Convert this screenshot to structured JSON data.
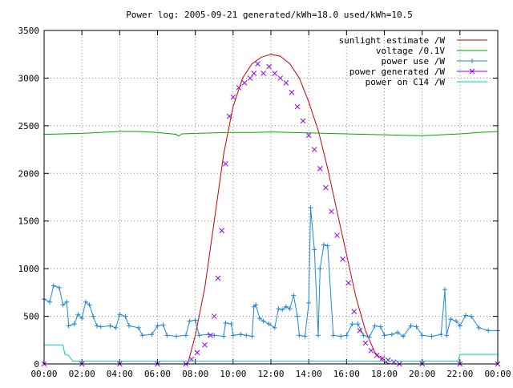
{
  "chart_data": {
    "type": "line",
    "title": "Power log: 2005-09-21 generated/kWh=18.0 used/kWh=10.5",
    "xlabel": "",
    "ylabel": "",
    "x_ticks": [
      "00:00",
      "02:00",
      "04:00",
      "06:00",
      "08:00",
      "10:00",
      "12:00",
      "14:00",
      "16:00",
      "18:00",
      "20:00",
      "22:00",
      "00:00"
    ],
    "y_ticks": [
      "0",
      "500",
      "1000",
      "1500",
      "2000",
      "2500",
      "3000",
      "3500"
    ],
    "xlim": [
      0,
      24
    ],
    "ylim": [
      0,
      3500
    ],
    "grid": true,
    "legend_position": "top-right",
    "series": [
      {
        "name": "sunlight estimate /W",
        "color": "#cc0000",
        "style": "line",
        "points": [
          [
            7.6,
            0
          ],
          [
            8.0,
            300
          ],
          [
            8.5,
            800
          ],
          [
            9.0,
            1500
          ],
          [
            9.5,
            2200
          ],
          [
            10.0,
            2700
          ],
          [
            10.5,
            3000
          ],
          [
            11.0,
            3150
          ],
          [
            11.5,
            3220
          ],
          [
            12.0,
            3250
          ],
          [
            12.5,
            3230
          ],
          [
            13.0,
            3150
          ],
          [
            13.5,
            3000
          ],
          [
            14.0,
            2750
          ],
          [
            14.5,
            2450
          ],
          [
            15.0,
            2050
          ],
          [
            15.5,
            1600
          ],
          [
            16.0,
            1150
          ],
          [
            16.5,
            700
          ],
          [
            17.0,
            350
          ],
          [
            17.5,
            120
          ],
          [
            18.0,
            20
          ],
          [
            18.3,
            0
          ]
        ]
      },
      {
        "name": "voltage /0.1V",
        "color": "#00aa00",
        "style": "line",
        "points": [
          [
            0,
            2410
          ],
          [
            1,
            2415
          ],
          [
            2,
            2420
          ],
          [
            3,
            2430
          ],
          [
            4,
            2440
          ],
          [
            5,
            2440
          ],
          [
            6,
            2430
          ],
          [
            7,
            2410
          ],
          [
            7.1,
            2390
          ],
          [
            7.3,
            2415
          ],
          [
            8,
            2420
          ],
          [
            9,
            2425
          ],
          [
            10,
            2430
          ],
          [
            11,
            2430
          ],
          [
            12,
            2435
          ],
          [
            13,
            2430
          ],
          [
            14,
            2425
          ],
          [
            15,
            2420
          ],
          [
            16,
            2415
          ],
          [
            17,
            2410
          ],
          [
            18,
            2405
          ],
          [
            19,
            2400
          ],
          [
            20,
            2395
          ],
          [
            21,
            2405
          ],
          [
            22,
            2415
          ],
          [
            23,
            2430
          ],
          [
            24,
            2440
          ]
        ]
      },
      {
        "name": "power use /W",
        "color": "#1e88d8",
        "style": "linespoints",
        "points": [
          [
            0,
            680
          ],
          [
            0.3,
            650
          ],
          [
            0.5,
            820
          ],
          [
            0.8,
            800
          ],
          [
            1.0,
            620
          ],
          [
            1.2,
            650
          ],
          [
            1.3,
            400
          ],
          [
            1.6,
            420
          ],
          [
            1.8,
            520
          ],
          [
            2.0,
            480
          ],
          [
            2.2,
            650
          ],
          [
            2.4,
            620
          ],
          [
            2.6,
            500
          ],
          [
            2.8,
            400
          ],
          [
            3.0,
            390
          ],
          [
            3.5,
            400
          ],
          [
            3.8,
            380
          ],
          [
            4.0,
            520
          ],
          [
            4.3,
            500
          ],
          [
            4.5,
            400
          ],
          [
            5.0,
            380
          ],
          [
            5.2,
            300
          ],
          [
            5.7,
            310
          ],
          [
            6.0,
            400
          ],
          [
            6.3,
            410
          ],
          [
            6.5,
            300
          ],
          [
            7.0,
            290
          ],
          [
            7.5,
            300
          ],
          [
            7.7,
            450
          ],
          [
            8.0,
            460
          ],
          [
            8.2,
            300
          ],
          [
            8.7,
            310
          ],
          [
            9.0,
            300
          ],
          [
            9.5,
            290
          ],
          [
            9.6,
            430
          ],
          [
            9.9,
            420
          ],
          [
            10.0,
            300
          ],
          [
            10.4,
            310
          ],
          [
            10.7,
            300
          ],
          [
            11.0,
            290
          ],
          [
            11.1,
            600
          ],
          [
            11.2,
            620
          ],
          [
            11.4,
            480
          ],
          [
            11.6,
            450
          ],
          [
            11.9,
            420
          ],
          [
            12.2,
            380
          ],
          [
            12.4,
            580
          ],
          [
            12.6,
            570
          ],
          [
            12.8,
            600
          ],
          [
            13.0,
            580
          ],
          [
            13.2,
            720
          ],
          [
            13.4,
            500
          ],
          [
            13.5,
            300
          ],
          [
            13.8,
            290
          ],
          [
            14.0,
            640
          ],
          [
            14.1,
            1640
          ],
          [
            14.3,
            1200
          ],
          [
            14.5,
            300
          ],
          [
            14.6,
            1000
          ],
          [
            14.8,
            1250
          ],
          [
            15.0,
            1240
          ],
          [
            15.3,
            300
          ],
          [
            15.7,
            290
          ],
          [
            16.0,
            300
          ],
          [
            16.3,
            420
          ],
          [
            16.6,
            420
          ],
          [
            16.9,
            300
          ],
          [
            17.2,
            280
          ],
          [
            17.5,
            400
          ],
          [
            17.8,
            390
          ],
          [
            18.0,
            300
          ],
          [
            18.4,
            310
          ],
          [
            18.7,
            330
          ],
          [
            19.0,
            290
          ],
          [
            19.4,
            400
          ],
          [
            19.7,
            390
          ],
          [
            20.0,
            300
          ],
          [
            20.5,
            290
          ],
          [
            21.0,
            310
          ],
          [
            21.2,
            780
          ],
          [
            21.3,
            300
          ],
          [
            21.5,
            470
          ],
          [
            21.8,
            450
          ],
          [
            22.0,
            400
          ],
          [
            22.3,
            510
          ],
          [
            22.6,
            500
          ],
          [
            23.0,
            380
          ],
          [
            23.5,
            350
          ],
          [
            24,
            350
          ]
        ]
      },
      {
        "name": "power generated /W",
        "color": "#9a00e6",
        "style": "points",
        "points": [
          [
            0,
            0
          ],
          [
            2,
            0
          ],
          [
            4,
            0
          ],
          [
            6,
            0
          ],
          [
            7.5,
            0
          ],
          [
            7.8,
            50
          ],
          [
            8.1,
            120
          ],
          [
            8.5,
            200
          ],
          [
            8.8,
            300
          ],
          [
            9.0,
            500
          ],
          [
            9.2,
            900
          ],
          [
            9.4,
            1400
          ],
          [
            9.6,
            2100
          ],
          [
            9.8,
            2600
          ],
          [
            10.0,
            2800
          ],
          [
            10.3,
            2900
          ],
          [
            10.6,
            2950
          ],
          [
            10.9,
            3000
          ],
          [
            11.1,
            3050
          ],
          [
            11.3,
            3150
          ],
          [
            11.6,
            3050
          ],
          [
            11.9,
            3120
          ],
          [
            12.2,
            3050
          ],
          [
            12.5,
            3000
          ],
          [
            12.8,
            2950
          ],
          [
            13.1,
            2850
          ],
          [
            13.4,
            2700
          ],
          [
            13.7,
            2550
          ],
          [
            14.0,
            2400
          ],
          [
            14.3,
            2250
          ],
          [
            14.6,
            2050
          ],
          [
            14.9,
            1850
          ],
          [
            15.2,
            1600
          ],
          [
            15.5,
            1350
          ],
          [
            15.8,
            1100
          ],
          [
            16.1,
            850
          ],
          [
            16.4,
            550
          ],
          [
            16.7,
            350
          ],
          [
            17.0,
            220
          ],
          [
            17.3,
            140
          ],
          [
            17.6,
            90
          ],
          [
            17.9,
            60
          ],
          [
            18.2,
            40
          ],
          [
            18.5,
            20
          ],
          [
            18.8,
            0
          ],
          [
            20,
            0
          ],
          [
            22,
            0
          ],
          [
            24,
            0
          ]
        ]
      },
      {
        "name": "power on C14 /W",
        "color": "#00cccc",
        "style": "line",
        "points": [
          [
            0,
            200
          ],
          [
            1.0,
            200
          ],
          [
            1.1,
            100
          ],
          [
            1.3,
            90
          ],
          [
            1.5,
            30
          ],
          [
            1.8,
            30
          ],
          [
            2,
            30
          ],
          [
            4,
            30
          ],
          [
            6,
            30
          ],
          [
            8,
            30
          ],
          [
            10,
            30
          ],
          [
            12,
            30
          ],
          [
            14,
            30
          ],
          [
            16,
            30
          ],
          [
            18,
            30
          ],
          [
            20,
            30
          ],
          [
            21.9,
            30
          ],
          [
            22.0,
            100
          ],
          [
            23,
            100
          ],
          [
            24,
            100
          ]
        ]
      }
    ]
  }
}
